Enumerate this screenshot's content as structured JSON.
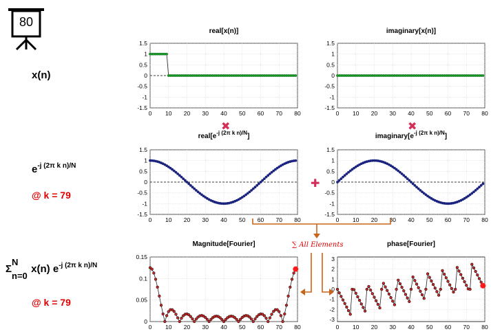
{
  "icon_counter": "80",
  "colors": {
    "accent_red": "#e00000",
    "series_blue": "#1a237e",
    "stem_green": "#2e7d32",
    "point_green": "#1b9e2a",
    "fourier_red": "#c62828",
    "arrow_orange": "#c8641a",
    "op_red": "#d32f5a"
  },
  "labels": {
    "xn": "x(n)",
    "exp_base": "e",
    "exp_power": "-j (2π k n)/N",
    "k_line": "@ k = 79",
    "sum_sigma": "Σ",
    "sum_top": "N",
    "sum_bottom": "n=0",
    "sum_body": " x(n) e",
    "sum_power": "-j (2π k n)/N",
    "k_line2": "@ k = 79",
    "all_elements": "∑ All Elements",
    "times_symbol": "✖",
    "plus_symbol": "✚"
  },
  "titles": {
    "real_x": "real[x(n)]",
    "imag_x": "imaginary[x(n)]",
    "real_e_pre": "real[e",
    "real_e_sup": "-j (2π k n)/N",
    "real_e_post": "]",
    "imag_e_pre": "imaginary[e",
    "imag_e_sup": "-j (2π k n)/N",
    "imag_e_post": "]",
    "magnitude": "Magnitude[Fourier]",
    "phase": "phase[Fourier]"
  },
  "chart_data": [
    {
      "type": "line",
      "id": "real_x",
      "title": "real[x(n)]",
      "x_range": [
        0,
        79
      ],
      "rule": "1 for n=0..9, 0 otherwise",
      "xlim": [
        0,
        80
      ],
      "ylim": [
        -1.5,
        1.5
      ],
      "xticks": [
        0,
        10,
        20,
        30,
        40,
        50,
        60,
        70,
        80
      ],
      "yticks": [
        1.5,
        1,
        0.5,
        0,
        -0.5,
        -1,
        -1.5
      ],
      "grid": true
    },
    {
      "type": "line",
      "id": "imag_x",
      "title": "imaginary[x(n)]",
      "x_range": [
        0,
        79
      ],
      "rule": "0 for all n",
      "xlim": [
        0,
        80
      ],
      "ylim": [
        -1.5,
        1.5
      ],
      "xticks": [
        0,
        10,
        20,
        30,
        40,
        50,
        60,
        70,
        80
      ],
      "yticks": [
        1.5,
        1,
        0.5,
        0,
        -0.5,
        -1,
        -1.5
      ],
      "grid": true
    },
    {
      "type": "line",
      "id": "real_e",
      "title": "real[e^-j (2π k n)/N]",
      "k": 79,
      "N": 80,
      "rule": "cos(2π k n / N)",
      "xlim": [
        0,
        80
      ],
      "ylim": [
        -1.5,
        1.5
      ],
      "xticks": [
        0,
        10,
        20,
        30,
        40,
        50,
        60,
        70,
        80
      ],
      "yticks": [
        1.5,
        1,
        0.5,
        0,
        -0.5,
        -1,
        -1.5
      ],
      "grid": true
    },
    {
      "type": "line",
      "id": "imag_e",
      "title": "imaginary[e^-j (2π k n)/N]",
      "k": 79,
      "N": 80,
      "rule": "-sin(2π k n / N)",
      "xlim": [
        0,
        80
      ],
      "ylim": [
        -1.5,
        1.5
      ],
      "xticks": [
        0,
        10,
        20,
        30,
        40,
        50,
        60,
        70,
        80
      ],
      "yticks": [
        1.5,
        1,
        0.5,
        0,
        -0.5,
        -1,
        -1.5
      ],
      "grid": true
    },
    {
      "type": "line",
      "id": "magnitude",
      "title": "Magnitude[Fourier]",
      "rule": "|DFT of x(n)| / N",
      "highlight_k": 79,
      "xlim": [
        0,
        80
      ],
      "ylim": [
        0,
        0.15
      ],
      "xticks": [
        0,
        10,
        20,
        30,
        40,
        50,
        60,
        70,
        80
      ],
      "yticks": [
        0.15,
        0.1,
        0.05,
        0
      ],
      "grid": true
    },
    {
      "type": "line",
      "id": "phase",
      "title": "phase[Fourier]",
      "rule": "arg(DFT of x(n))",
      "highlight_k": 79,
      "xlim": [
        0,
        80
      ],
      "ylim": [
        -3.2,
        3.2
      ],
      "xticks": [
        0,
        10,
        20,
        30,
        40,
        50,
        60,
        70,
        80
      ],
      "yticks": [
        3,
        2,
        1,
        0,
        -1,
        -2,
        -3
      ],
      "grid": true
    }
  ]
}
